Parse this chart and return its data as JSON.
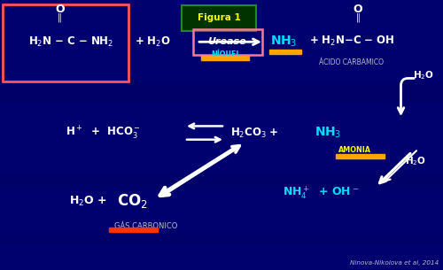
{
  "bg_color": "#00006E",
  "text_white": "#FFFFFF",
  "text_cyan": "#00DDFF",
  "text_yellow": "#FFFF00",
  "text_gray": "#BBBBCC",
  "text_cyan_label": "#00CCFF",
  "bar_orange": "#FFA500",
  "bar_red": "#FF3300",
  "box_red": "#FF5555",
  "box_pink": "#FF7799",
  "box_green_bg": "#003300",
  "box_green_border": "#228822",
  "figura1": "Figura 1",
  "citation": "Ninova-Nikolova et al, 2014",
  "urease": "Urease",
  "niquel": "NÍQUEL",
  "acido_carbamico": "ÁCIDO CARBAMICO",
  "amonia": "AMONIA",
  "gas_carbonico": "GÁS CARBONICO"
}
